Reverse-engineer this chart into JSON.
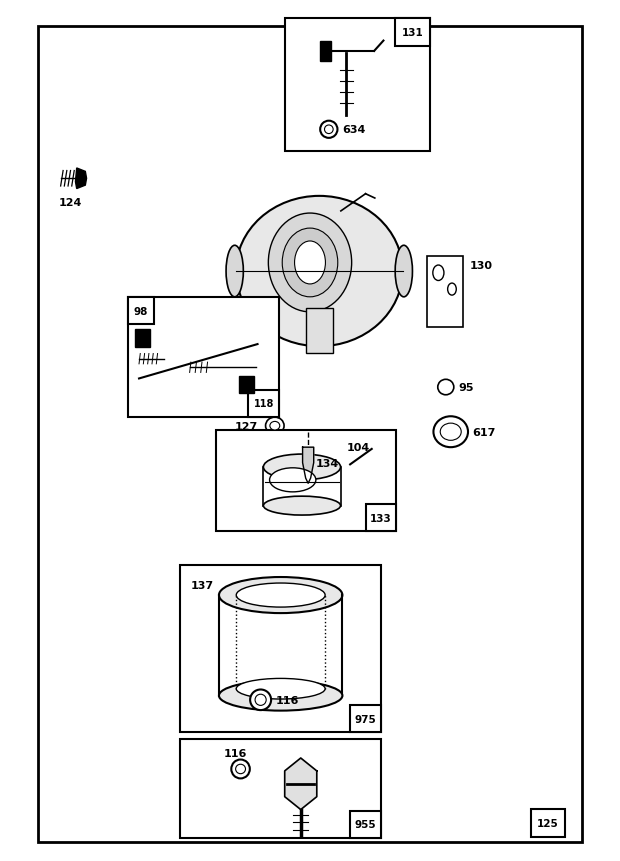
{
  "bg_color": "#ffffff",
  "fig_width": 6.2,
  "fig_height": 8.62
}
